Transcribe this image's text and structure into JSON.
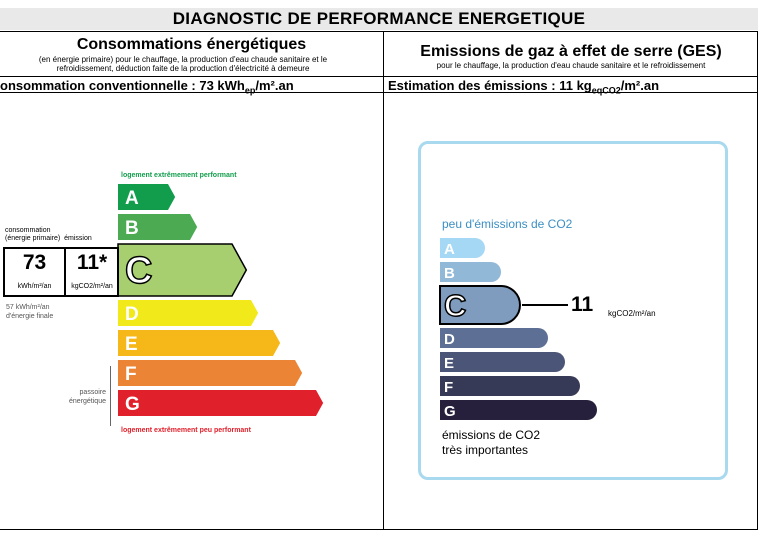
{
  "title": "DIAGNOSTIC DE PERFORMANCE ENERGETIQUE",
  "energy": {
    "heading": "Consommations énergétiques",
    "note_line1": "(en énergie primaire) pour le chauffage, la production d'eau chaude sanitaire et le",
    "note_line2": "refroidissement, déduction faite de la production d'électricité à demeure",
    "sub_label": "onsommation conventionnelle : 73 kWh",
    "sub_unit_sub": "ep",
    "sub_unit_end": "/m².an",
    "top_label": "logement extrêmement performant",
    "bottom_label": "logement extrêmement peu performant",
    "selected_class": "C",
    "consumption_label_1": "consommation",
    "consumption_label_2": "(énergie primaire)",
    "emission_label": "émission",
    "consumption_value": "73",
    "emission_value": "11*",
    "consumption_unit": "kWh/m²/an",
    "emission_unit": "kgCO2/m²/an",
    "final_line1": "57 kWh/m²/an",
    "final_line2": "d'énergie finale",
    "passoire_1": "passoire",
    "passoire_2": "énergétique",
    "classes": [
      {
        "letter": "A",
        "color": "#129d4c"
      },
      {
        "letter": "B",
        "color": "#4cab52"
      },
      {
        "letter": "C",
        "color": "#a8cf6f"
      },
      {
        "letter": "D",
        "color": "#f1e919"
      },
      {
        "letter": "E",
        "color": "#f6b718"
      },
      {
        "letter": "F",
        "color": "#ec8436"
      },
      {
        "letter": "G",
        "color": "#e0202b"
      }
    ]
  },
  "ges": {
    "heading": "Emissions de gaz à effet de serre (GES)",
    "note": "pour le chauffage, la production d'eau chaude sanitaire et le refroidissement",
    "sub_label": "Estimation des émissions : 11 kg",
    "sub_unit_sub": "eqCO2",
    "sub_unit_end": "/m².an",
    "top_label": "peu d'émissions de CO2",
    "bottom_label_1": "émissions de CO2",
    "bottom_label_2": "très importantes",
    "selected_class": "C",
    "value": "11",
    "unit": "kgCO2/m²/an",
    "classes": [
      {
        "letter": "A",
        "color": "#a5d8f4"
      },
      {
        "letter": "B",
        "color": "#92b8d8"
      },
      {
        "letter": "C",
        "color": "#7f9bbe"
      },
      {
        "letter": "D",
        "color": "#5d6f95"
      },
      {
        "letter": "E",
        "color": "#4b5578"
      },
      {
        "letter": "F",
        "color": "#373a57"
      },
      {
        "letter": "G",
        "color": "#26203d"
      }
    ]
  }
}
